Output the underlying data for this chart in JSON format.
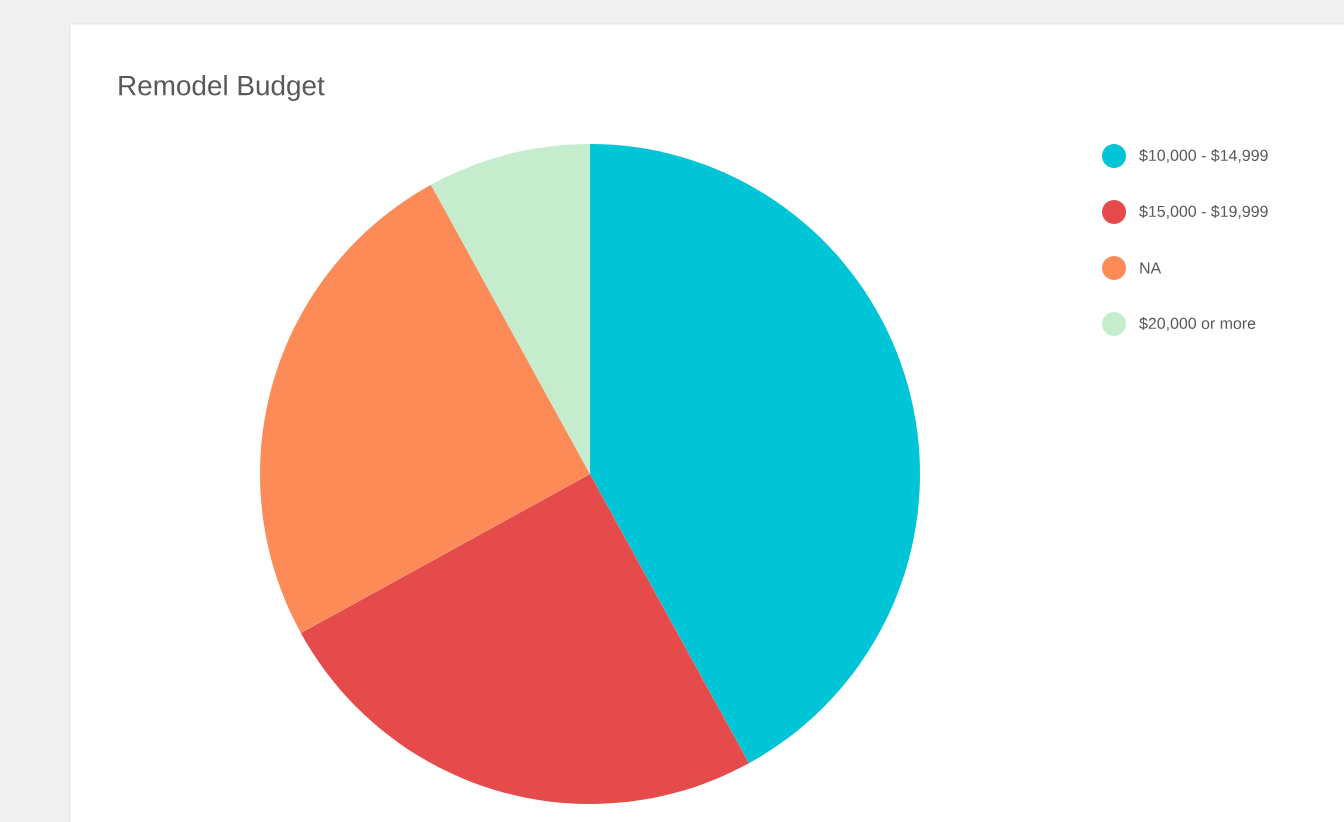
{
  "chart_data": {
    "type": "pie",
    "title": "Remodel Budget",
    "categories": [
      "$10,000 - $14,999",
      "$15,000 - $19,999",
      "NA",
      "$20,000 or more"
    ],
    "values": [
      42,
      25,
      25,
      8
    ],
    "colors": [
      "#00c5d6",
      "#e54b4b",
      "#fc8b57",
      "#c6ecce"
    ],
    "legend": "top right"
  }
}
